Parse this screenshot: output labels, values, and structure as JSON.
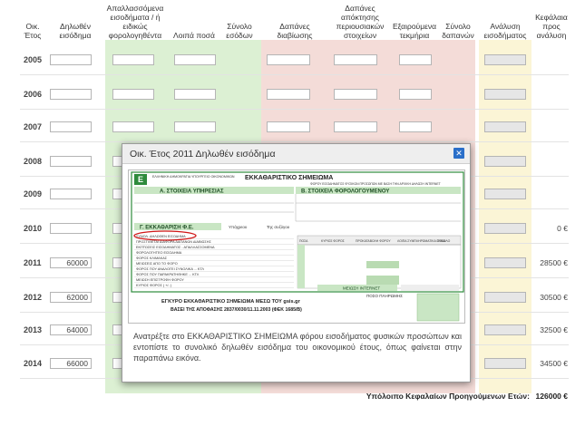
{
  "headers": {
    "year": "Οικ. Έτος",
    "declared_income": "Δηλωθέν εισόδημα",
    "exempt_income": "Απαλλασσόμενα εισοδήματα / ή ειδικώς φορολογηθέντα",
    "other_amounts": "Λοιπά ποσά",
    "total_income": "Σύνολο εσόδων",
    "living_expenses": "Δαπάνες διαβίωσης",
    "asset_expenses": "Δαπάνες απόκτησης περιουσιακών στοιχείων",
    "exempt_evidence": "Εξαιρούμενα τεκμήρια",
    "total_expenses": "Σύνολο δαπανών",
    "income_analysis": "Ανάλυση εισοδήματος",
    "capital_analysis": "Κεφάλαια προς ανάλυση"
  },
  "colors": {
    "green": "#dcf0d3",
    "red": "#f4dcd8",
    "yellow": "#fbf5d6",
    "accent": "#2a6fc9"
  },
  "rows": [
    {
      "year": "2005",
      "declared": "",
      "capital": ""
    },
    {
      "year": "2006",
      "declared": "",
      "capital": ""
    },
    {
      "year": "2007",
      "declared": "",
      "capital": ""
    },
    {
      "year": "2008",
      "declared": "",
      "capital": ""
    },
    {
      "year": "2009",
      "declared": "",
      "capital": ""
    },
    {
      "year": "2010",
      "declared": "",
      "capital": "0 €"
    },
    {
      "year": "2011",
      "declared": "60000",
      "capital": "28500 €"
    },
    {
      "year": "2012",
      "declared": "62000",
      "capital": "30500 €"
    },
    {
      "year": "2013",
      "declared": "64000",
      "capital": "32500 €"
    },
    {
      "year": "2014",
      "declared": "66000",
      "capital": "34500 €"
    }
  ],
  "footer": {
    "label": "Υπόλοιπο Κεφαλαίων Προηγούμενων Ετών:",
    "value": "126000 €"
  },
  "modal": {
    "title": "Οικ. Έτος 2011 Δηλωθέν εισόδημα",
    "close_icon": "close-icon",
    "description": "Ανατρέξτε στο ΕΚΚΑΘΑΡΙΣΤΙΚΟ ΣΗΜΕΙΩΜΑ φόρου εισοδήματος φυσικών προσώπων και εντοπίστε το συνολικό δηλωθέν εισόδημα του οικονομικού έτους, όπως φαίνεται στην παραπάνω εικόνα."
  },
  "form": {
    "ministry": "ΕΛΛΗΝΙΚΗ ΔΗΜΟΚΡΑΤΙΑ ΥΠΟΥΡΓΕΙΟ ΟΙΚΟΝΟΜΙΚΩΝ",
    "heading": "ΕΚΚΑΘΑΡΙΣΤΙΚΟ ΣΗΜΕΙΩΜΑ",
    "subheading": "ΦΟΡΟΥ ΕΙΣΟΔΗΜΑΤΟΣ ΦΥΣΙΚΩΝ ΠΡΟΣΩΠΩΝ ΜΕ ΒΑΣΗ ΤΗΝ ΑΡΧΙΚΗ ΔΗΛΩΣΗ INTERNET",
    "section_a": "Α. ΣΤΟΙΧΕΙΑ ΥΠΗΡΕΣΙΑΣ",
    "section_b": "Β. ΣΤΟΙΧΕΙΑ ΦΟΡΟΛΟΓΟΥΜΕΝΟΥ",
    "section_c": "Γ. ΕΚΚΑΘΑΡΙΣΗ Φ.Ε.",
    "col_taxpayer": "Υπόχρεου",
    "col_spouse": "Της συζύγου",
    "lines": [
      "ΣΥΝΟΛ. ΔΗΛΩΘΕΝ ΕΙΣΟΔΗΜΑ",
      "ΠΡΟΣΤΙΘΕΤΑΙ ΔΙΑΦΟΡΑ ΔΑΠΑΝΩΝ ΔΙΑΒΙΩΣΗΣ",
      "ΕΚΠΤΩΣΕΙΣ ΕΙΣΟΔΗΜΑΤΟΣ - ΑΠΑΛΛΑΣΣΟΜΕΝΑ",
      "ΦΟΡΟΛΟΓΗΤΕΟ ΕΙΣΟΔΗΜΑ",
      "ΦΟΡΟΣ ΚΛΙΜΑΚΑΣ",
      "ΜΕΙΩΣΕΙΣ ΑΠΟ ΤΟ ΦΟΡΟ",
      "ΦΟΡΟΣ ΠΟΥ ΑΝΑΛΟΓΕΙ ΣΥΝΟΛΙΚΑ ... ΚΤΛ",
      "ΦΟΡΟΣ ΠΟΥ ΠΑΡΑΚΡΑΤΗΘΗΚΕ ... ΚΤΛ",
      "ΜΕΙΩΣΗ ΕΠΙΣΤΡΟΦΗ ΦΟΡΟΥ",
      "ΚΥΡΙΟΣ ΦΟΡΟΣ ( +/- )"
    ],
    "table_cols": [
      "ΠΟΣΑ",
      "ΚΥΡΙΟΣ ΦΟΡΟΣ",
      "ΠΡΟΚΑΤΑΒΟΛΗ ΦΟΡΟΥ",
      "ΛΟΙΠΑ ΣΥΜΠΛΗΡΩΜΑΤΙΚΑ ΠΟΣΑ",
      "ΣΥΝΟΛΟ"
    ],
    "reduction_internet": "ΜΕΙΩΣΗ INTERNET",
    "payable_amount": "ΠΟΣΟ ΠΛΗΡΩΜΗΣ",
    "footer_line1": "ΕΓΚΥΡΟ ΕΚΚΑΘΑΡΙΣΤΙΚΟ ΣΗΜΕΙΩΜΑ ΜΕΣΩ ΤΟΥ gsis.gr",
    "footer_line2": "ΒΑΣΕΙ ΤΗΣ ΑΠΟΦΑΣΗΣ 2837/0030/11.11.2003 (ΦΕΚ 1685/Β)"
  }
}
